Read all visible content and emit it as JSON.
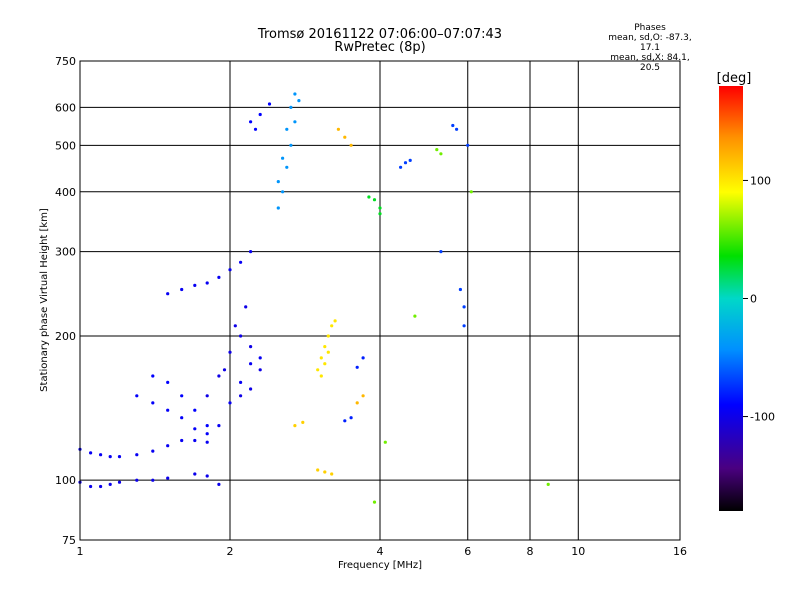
{
  "chart_data": {
    "type": "scatter",
    "title": "Tromsø 20161122 07:06:00–07:07:43",
    "subtitle": "RwPretec (8p)",
    "xlabel": "Frequency [MHz]",
    "ylabel": "Stationary phase Virtual Height [km]",
    "x_scale": "log2",
    "y_scale": "log",
    "xlim": [
      1,
      16
    ],
    "ylim": [
      75,
      750
    ],
    "x_ticks": [
      1,
      2,
      4,
      6,
      8,
      10,
      16
    ],
    "y_ticks": [
      75,
      100,
      200,
      300,
      400,
      500,
      600,
      750
    ],
    "grid": true,
    "phase_stats": {
      "heading": "Phases",
      "line_o": "mean, sd,O: -87.3, 17.1",
      "line_x": "mean, sd,X:  84.1, 20.5"
    },
    "colorbar": {
      "label": "[deg]",
      "ticks": [
        100,
        0,
        -100
      ],
      "range": [
        -180,
        180
      ]
    },
    "traces": [
      {
        "phase": -95,
        "points": [
          [
            1.0,
            116
          ],
          [
            1.05,
            114
          ],
          [
            1.1,
            113
          ],
          [
            1.15,
            112
          ],
          [
            1.2,
            112
          ],
          [
            1.3,
            113
          ],
          [
            1.4,
            115
          ],
          [
            1.5,
            118
          ],
          [
            1.6,
            121
          ],
          [
            1.7,
            121
          ],
          [
            1.8,
            120
          ],
          [
            1.9,
            130
          ],
          [
            2.0,
            145
          ],
          [
            2.1,
            160
          ],
          [
            2.2,
            175
          ],
          [
            2.3,
            180
          ]
        ]
      },
      {
        "phase": -98,
        "points": [
          [
            1.0,
            99
          ],
          [
            1.05,
            97
          ],
          [
            1.1,
            97
          ],
          [
            1.15,
            98
          ],
          [
            1.2,
            99
          ],
          [
            1.3,
            100
          ],
          [
            1.4,
            100
          ],
          [
            1.5,
            101
          ],
          [
            1.7,
            103
          ],
          [
            1.8,
            102
          ],
          [
            1.9,
            98
          ]
        ]
      },
      {
        "phase": -92,
        "points": [
          [
            1.3,
            150
          ],
          [
            1.4,
            145
          ],
          [
            1.5,
            140
          ],
          [
            1.6,
            135
          ],
          [
            1.7,
            128
          ],
          [
            1.8,
            125
          ]
        ]
      },
      {
        "phase": -90,
        "points": [
          [
            1.4,
            165
          ],
          [
            1.5,
            160
          ],
          [
            1.6,
            150
          ],
          [
            1.7,
            140
          ],
          [
            1.8,
            130
          ]
        ]
      },
      {
        "phase": -95,
        "points": [
          [
            1.5,
            245
          ],
          [
            1.6,
            250
          ],
          [
            1.7,
            255
          ],
          [
            1.8,
            258
          ],
          [
            1.9,
            265
          ],
          [
            2.0,
            275
          ],
          [
            2.1,
            285
          ],
          [
            2.2,
            300
          ]
        ]
      },
      {
        "phase": -100,
        "points": [
          [
            1.8,
            150
          ],
          [
            1.9,
            165
          ],
          [
            2.0,
            185
          ],
          [
            2.1,
            200
          ],
          [
            2.2,
            190
          ],
          [
            2.3,
            170
          ],
          [
            2.2,
            155
          ],
          [
            2.1,
            150
          ],
          [
            1.95,
            170
          ],
          [
            2.05,
            210
          ],
          [
            2.15,
            230
          ]
        ]
      },
      {
        "phase": -40,
        "points": [
          [
            2.5,
            370
          ],
          [
            2.55,
            400
          ],
          [
            2.6,
            450
          ],
          [
            2.65,
            500
          ],
          [
            2.7,
            560
          ],
          [
            2.75,
            620
          ],
          [
            2.7,
            640
          ],
          [
            2.65,
            600
          ],
          [
            2.6,
            540
          ],
          [
            2.55,
            470
          ],
          [
            2.5,
            420
          ]
        ]
      },
      {
        "phase": -90,
        "points": [
          [
            2.2,
            560
          ],
          [
            2.25,
            540
          ],
          [
            2.3,
            580
          ],
          [
            2.4,
            610
          ]
        ]
      },
      {
        "phase": 100,
        "points": [
          [
            3.0,
            170
          ],
          [
            3.05,
            180
          ],
          [
            3.1,
            190
          ],
          [
            3.15,
            200
          ],
          [
            3.2,
            210
          ],
          [
            3.25,
            215
          ],
          [
            3.15,
            185
          ],
          [
            3.1,
            175
          ],
          [
            3.05,
            165
          ]
        ]
      },
      {
        "phase": 110,
        "points": [
          [
            2.7,
            130
          ],
          [
            2.8,
            132
          ],
          [
            3.0,
            105
          ],
          [
            3.1,
            104
          ],
          [
            3.2,
            103
          ]
        ]
      },
      {
        "phase": -80,
        "points": [
          [
            3.4,
            133
          ],
          [
            3.5,
            135
          ],
          [
            3.6,
            172
          ],
          [
            3.7,
            180
          ]
        ]
      },
      {
        "phase": 120,
        "points": [
          [
            3.6,
            145
          ],
          [
            3.7,
            150
          ],
          [
            3.3,
            540
          ],
          [
            3.4,
            520
          ],
          [
            3.5,
            500
          ]
        ]
      },
      {
        "phase": 30,
        "points": [
          [
            3.8,
            390
          ],
          [
            3.9,
            385
          ],
          [
            4.0,
            370
          ],
          [
            4.0,
            360
          ]
        ]
      },
      {
        "phase": -70,
        "points": [
          [
            4.4,
            450
          ],
          [
            4.5,
            460
          ],
          [
            4.6,
            465
          ],
          [
            5.3,
            300
          ],
          [
            5.8,
            250
          ],
          [
            5.9,
            230
          ],
          [
            5.9,
            210
          ],
          [
            5.6,
            550
          ],
          [
            5.7,
            540
          ],
          [
            6.0,
            500
          ]
        ]
      },
      {
        "phase": 60,
        "points": [
          [
            3.9,
            90
          ],
          [
            4.1,
            120
          ],
          [
            4.7,
            220
          ],
          [
            5.2,
            490
          ],
          [
            5.3,
            480
          ],
          [
            6.1,
            400
          ],
          [
            8.7,
            98
          ]
        ]
      }
    ]
  }
}
